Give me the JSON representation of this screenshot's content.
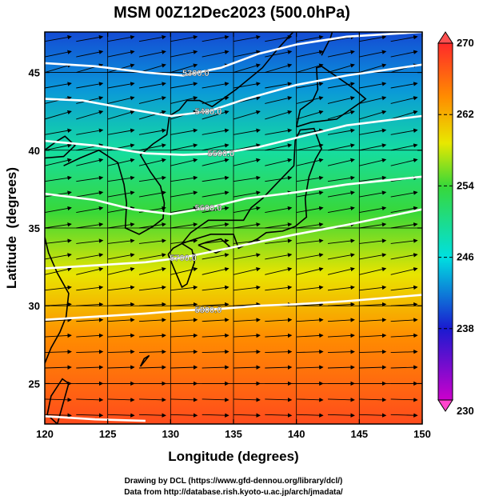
{
  "chart_data": {
    "type": "heatmap",
    "title": "MSM 00Z12Dec2023 (500.0hPa)",
    "xlabel": "Longitude (degrees)",
    "ylabel": "Latitude  (degrees)",
    "xlim": [
      120,
      150
    ],
    "ylim": [
      22.4,
      47.6
    ],
    "x_ticks": [
      120,
      125,
      130,
      135,
      140,
      145,
      150
    ],
    "y_ticks": [
      25,
      30,
      35,
      40,
      45
    ],
    "grid": true,
    "colorbar": {
      "min": 230,
      "max": 270,
      "ticks": [
        270,
        262,
        254,
        246,
        238,
        230
      ],
      "labels": [
        "270",
        "262",
        "254",
        "246",
        "238",
        "230"
      ]
    },
    "colors": {
      "purple": "#cc00cc",
      "blue": "#1a1ad0",
      "cyan": "#00e0e0",
      "green": "#38d838",
      "yellow": "#e8e800",
      "orange": "#ff8c00",
      "red": "#ff2a2a"
    },
    "field_bands": [
      {
        "lat": 47.6,
        "value": 240
      },
      {
        "lat": 44,
        "value": 243
      },
      {
        "lat": 40,
        "value": 249
      },
      {
        "lat": 36,
        "value": 254
      },
      {
        "lat": 32,
        "value": 259
      },
      {
        "lat": 28,
        "value": 264
      },
      {
        "lat": 22.4,
        "value": 268
      }
    ],
    "contours": [
      {
        "label": "5300.0",
        "label_lon": 132,
        "points": [
          [
            120,
            45.6
          ],
          [
            124,
            45.4
          ],
          [
            128,
            45
          ],
          [
            131,
            44.8
          ],
          [
            134,
            45.3
          ],
          [
            137,
            46.2
          ],
          [
            140,
            46.8
          ],
          [
            144,
            47.3
          ],
          [
            150,
            47.6
          ]
        ]
      },
      {
        "label": "5400.0",
        "label_lon": 133,
        "points": [
          [
            120,
            43.3
          ],
          [
            123,
            43.2
          ],
          [
            127,
            42.6
          ],
          [
            130,
            42.2
          ],
          [
            133,
            42.5
          ],
          [
            136,
            43.3
          ],
          [
            140,
            44.2
          ],
          [
            144,
            44.8
          ],
          [
            150,
            45.5
          ]
        ]
      },
      {
        "label": "5500.0",
        "label_lon": 134,
        "points": [
          [
            120,
            40.6
          ],
          [
            124,
            40.3
          ],
          [
            128,
            39.8
          ],
          [
            131,
            39.7
          ],
          [
            134,
            39.8
          ],
          [
            137,
            40.2
          ],
          [
            140,
            40.8
          ],
          [
            144,
            41.6
          ],
          [
            150,
            42.2
          ]
        ]
      },
      {
        "label": "5600.0",
        "label_lon": 133,
        "points": [
          [
            120,
            37.2
          ],
          [
            124,
            36.8
          ],
          [
            127,
            36.2
          ],
          [
            130,
            35.9
          ],
          [
            133,
            36.3
          ],
          [
            136,
            36.9
          ],
          [
            140,
            37.3
          ],
          [
            144,
            37.8
          ],
          [
            150,
            38.3
          ]
        ]
      },
      {
        "label": "5700.0",
        "label_lon": 131,
        "points": [
          [
            120,
            32.4
          ],
          [
            124,
            32.6
          ],
          [
            128,
            32.8
          ],
          [
            131,
            33.1
          ],
          [
            134,
            33.6
          ],
          [
            137,
            34.1
          ],
          [
            140,
            34.6
          ],
          [
            144,
            35.2
          ],
          [
            150,
            36.2
          ]
        ]
      },
      {
        "label": "5800.0",
        "label_lon": 133,
        "points": [
          [
            120,
            29.1
          ],
          [
            124,
            29.3
          ],
          [
            128,
            29.5
          ],
          [
            131,
            29.7
          ],
          [
            134,
            29.8
          ],
          [
            137,
            30.0
          ],
          [
            140,
            30.1
          ],
          [
            144,
            30.3
          ],
          [
            150,
            30.7
          ]
        ]
      },
      {
        "label": "",
        "label_lon": 0,
        "points": [
          [
            120,
            22.9
          ],
          [
            124,
            22.7
          ],
          [
            128,
            22.6
          ]
        ]
      }
    ],
    "stream_lines": [
      {
        "lat": 47,
        "dy": 0.6
      },
      {
        "lat": 46,
        "dy": 0.7
      },
      {
        "lat": 45,
        "dy": 1.0
      },
      {
        "lat": 44,
        "dy": 0.6
      },
      {
        "lat": 43,
        "dy": 0.8
      },
      {
        "lat": 42,
        "dy": 1.0
      },
      {
        "lat": 41,
        "dy": 0.6
      },
      {
        "lat": 40,
        "dy": 0.7
      },
      {
        "lat": 39,
        "dy": 0.8
      },
      {
        "lat": 38,
        "dy": 0.5
      },
      {
        "lat": 37,
        "dy": 0.6
      },
      {
        "lat": 36,
        "dy": 0.6
      },
      {
        "lat": 35,
        "dy": 0.5
      },
      {
        "lat": 34,
        "dy": 0.4
      },
      {
        "lat": 33,
        "dy": 0.6
      },
      {
        "lat": 32,
        "dy": 0.8
      },
      {
        "lat": 31,
        "dy": 0.4
      },
      {
        "lat": 30,
        "dy": 0.2
      },
      {
        "lat": 29,
        "dy": 0.2
      },
      {
        "lat": 28,
        "dy": 0.2
      },
      {
        "lat": 27,
        "dy": 0.1
      },
      {
        "lat": 26,
        "dy": 0.1
      },
      {
        "lat": 25,
        "dy": 0.0
      },
      {
        "lat": 24,
        "dy": -0.1
      },
      {
        "lat": 23,
        "dy": -0.1
      }
    ],
    "coastlines": [
      [
        [
          120,
          39.5
        ],
        [
          121.5,
          39.6
        ],
        [
          122.4,
          40.3
        ],
        [
          121.6,
          40.9
        ],
        [
          121,
          40.6
        ],
        [
          119.8,
          39.9
        ]
      ],
      [
        [
          121.5,
          39
        ],
        [
          122.8,
          39.5
        ],
        [
          124.3,
          40
        ],
        [
          125.8,
          39.2
        ],
        [
          126.3,
          37.8
        ],
        [
          126.5,
          36.6
        ],
        [
          126.4,
          35
        ],
        [
          127.5,
          34.6
        ],
        [
          128.6,
          35.1
        ],
        [
          129.4,
          35.6
        ],
        [
          129.5,
          36.6
        ],
        [
          129.2,
          37.7
        ],
        [
          128.4,
          38.6
        ],
        [
          127.6,
          39.7
        ],
        [
          128.6,
          40.4
        ],
        [
          129.7,
          41
        ],
        [
          129.9,
          42.2
        ],
        [
          130.7,
          42.6
        ],
        [
          131.3,
          43.2
        ],
        [
          132.3,
          43.2
        ],
        [
          133.3,
          42.8
        ],
        [
          135.2,
          43.9
        ],
        [
          137.3,
          45.3
        ],
        [
          138.5,
          46.5
        ],
        [
          140.2,
          48
        ]
      ],
      [
        [
          129.8,
          33.3
        ],
        [
          130.9,
          31.2
        ],
        [
          131.3,
          31.4
        ],
        [
          131.9,
          32.8
        ],
        [
          131.7,
          33.6
        ],
        [
          130.9,
          34
        ],
        [
          130.2,
          33.7
        ],
        [
          129.8,
          33.3
        ]
      ],
      [
        [
          130.9,
          34
        ],
        [
          132,
          34.3
        ],
        [
          133.2,
          34.6
        ],
        [
          135,
          34.6
        ],
        [
          135.4,
          33.7
        ],
        [
          136.9,
          34.3
        ],
        [
          137.6,
          34.7
        ],
        [
          138.9,
          34.8
        ],
        [
          139.9,
          35.1
        ],
        [
          140.8,
          35.7
        ],
        [
          140.7,
          36.9
        ],
        [
          141,
          38.3
        ],
        [
          141.5,
          39.4
        ],
        [
          142,
          40.1
        ],
        [
          141.4,
          41.4
        ],
        [
          140.3,
          41.3
        ],
        [
          139.9,
          40.6
        ],
        [
          139.8,
          39
        ],
        [
          138.6,
          38
        ],
        [
          137.3,
          36.9
        ],
        [
          136.4,
          36.3
        ],
        [
          135.8,
          35.5
        ],
        [
          134.3,
          35.5
        ],
        [
          133,
          35.5
        ],
        [
          131.6,
          34.7
        ],
        [
          130.9,
          34
        ]
      ],
      [
        [
          132.2,
          33.9
        ],
        [
          133.6,
          33.4
        ],
        [
          134.7,
          33.8
        ],
        [
          134,
          34.3
        ],
        [
          132.9,
          34.1
        ],
        [
          132.2,
          33.9
        ]
      ],
      [
        [
          140,
          41.5
        ],
        [
          141.2,
          41.8
        ],
        [
          143.2,
          42.0
        ],
        [
          145.5,
          43.3
        ],
        [
          144.5,
          44.0
        ],
        [
          142,
          45.4
        ],
        [
          141.6,
          45.3
        ],
        [
          141.7,
          43.9
        ],
        [
          141.3,
          43.2
        ],
        [
          140.3,
          42.6
        ],
        [
          140,
          41.5
        ]
      ],
      [
        [
          142,
          46.1
        ],
        [
          142.7,
          47.2
        ],
        [
          143,
          48
        ]
      ],
      [
        [
          120.2,
          23
        ],
        [
          121,
          22.4
        ],
        [
          121.9,
          25
        ],
        [
          121.4,
          25.3
        ],
        [
          120.5,
          24.2
        ],
        [
          120.2,
          23
        ]
      ],
      [
        [
          120,
          26.3
        ],
        [
          120.5,
          27.3
        ],
        [
          121.2,
          28.3
        ],
        [
          121.7,
          29.3
        ],
        [
          121.9,
          30.8
        ],
        [
          121,
          32.1
        ],
        [
          120.3,
          33.4
        ],
        [
          120,
          34.4
        ]
      ],
      [
        [
          127.6,
          26.1
        ],
        [
          128.3,
          26.8
        ],
        [
          127.9,
          26.6
        ],
        [
          127.6,
          26.1
        ]
      ]
    ],
    "credits": [
      "Drawing by DCL (https://www.gfd-dennou.org/library/dcl/)",
      "Data from http://database.rish.kyoto-u.ac.jp/arch/jmadata/"
    ]
  }
}
